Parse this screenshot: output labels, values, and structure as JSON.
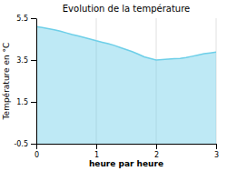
{
  "chart_data": {
    "type": "area",
    "title": "Evolution de la température",
    "xlabel": "heure par heure",
    "ylabel": "Température en °C",
    "x": [
      0,
      0.1,
      0.2,
      0.3,
      0.4,
      0.5,
      0.6,
      0.7,
      0.8,
      0.9,
      1.0,
      1.1,
      1.2,
      1.3,
      1.4,
      1.5,
      1.6,
      1.7,
      1.8,
      1.9,
      2.0,
      2.1,
      2.2,
      2.3,
      2.4,
      2.5,
      2.6,
      2.7,
      2.8,
      2.9,
      3.0
    ],
    "values": [
      5.1,
      5.05,
      5.0,
      4.95,
      4.88,
      4.8,
      4.72,
      4.65,
      4.58,
      4.5,
      4.42,
      4.35,
      4.28,
      4.2,
      4.1,
      4.0,
      3.9,
      3.78,
      3.65,
      3.58,
      3.5,
      3.52,
      3.54,
      3.56,
      3.58,
      3.62,
      3.68,
      3.74,
      3.8,
      3.84,
      3.88
    ],
    "color": "#6ecfe8",
    "xlim": [
      0,
      3
    ],
    "ylim": [
      -0.5,
      5.5
    ],
    "xticks": [
      0,
      1,
      2,
      3
    ],
    "yticks": [
      -0.5,
      1.5,
      3.5,
      5.5
    ],
    "grid": "x"
  }
}
